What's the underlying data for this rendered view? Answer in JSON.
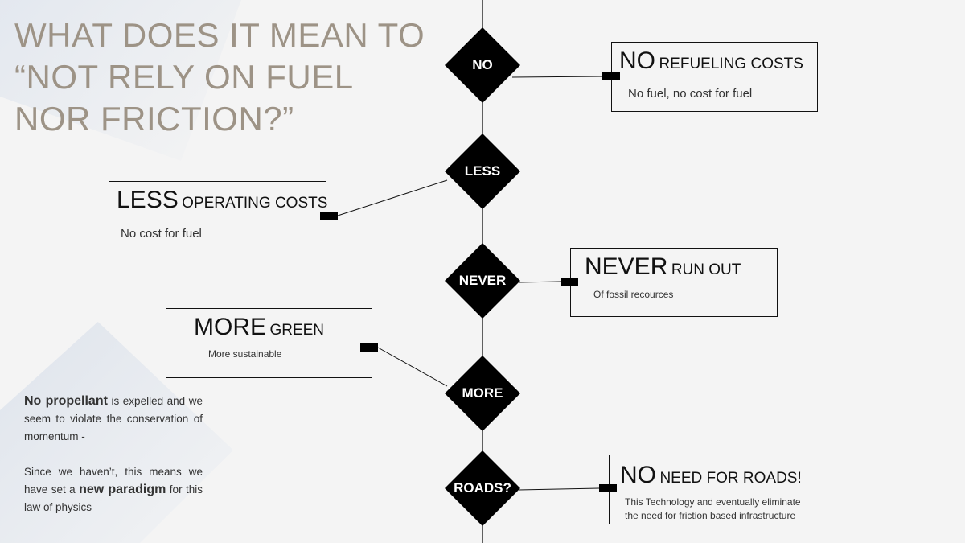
{
  "title": "WHAT DOES IT MEAN TO “NOT RELY ON FUEL NOR FRICTION?”",
  "diamonds": [
    "NO",
    "LESS",
    "NEVER",
    "MORE",
    "ROADS?"
  ],
  "boxes": [
    {
      "big": "NO",
      "small": "REFUELING COSTS",
      "body": "No fuel, no cost for fuel"
    },
    {
      "big": "LESS",
      "small": "OPERATING COSTS",
      "body": "No cost for fuel"
    },
    {
      "big": "NEVER",
      "small": "RUN OUT",
      "body": "Of fossil recources"
    },
    {
      "big": "MORE",
      "small": "GREEN",
      "body": "More sustainable"
    },
    {
      "big": "NO",
      "small": "NEED FOR ROADS!",
      "body": "This Technology and eventually eliminate the need for friction based infrastructure"
    }
  ],
  "note": {
    "p1_bold": "No propellant",
    "p1_rest": " is expelled and we seem to violate the conservation of momentum  -",
    "p2_a": "Since we haven’t, this means we have set a ",
    "p2_bold": "new paradigm",
    "p2_b": " for this law of physics"
  },
  "colors": {
    "title": "#9d9386",
    "diamond": "#000000",
    "background": "#f4f4f4"
  }
}
